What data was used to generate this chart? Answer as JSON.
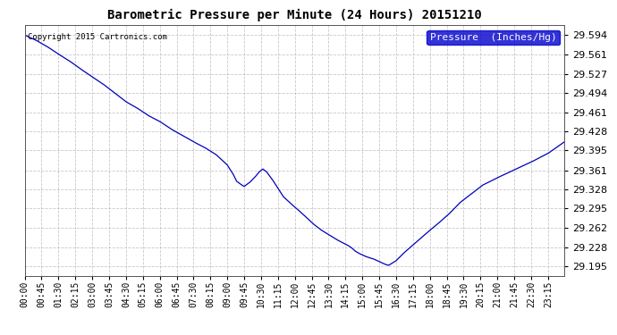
{
  "title": "Barometric Pressure per Minute (24 Hours) 20151210",
  "copyright": "Copyright 2015 Cartronics.com",
  "legend_label": "Pressure  (Inches/Hg)",
  "line_color": "#0000bb",
  "background_color": "#ffffff",
  "plot_bg_color": "#ffffff",
  "grid_color": "#bbbbbb",
  "yticks": [
    29.195,
    29.228,
    29.262,
    29.295,
    29.328,
    29.361,
    29.395,
    29.428,
    29.461,
    29.494,
    29.527,
    29.561,
    29.594
  ],
  "ylim": [
    29.178,
    29.611
  ],
  "xtick_labels": [
    "00:00",
    "00:45",
    "01:30",
    "02:15",
    "03:00",
    "03:45",
    "04:30",
    "05:15",
    "06:00",
    "06:45",
    "07:30",
    "08:15",
    "09:00",
    "09:45",
    "10:30",
    "11:15",
    "12:00",
    "12:45",
    "13:30",
    "14:15",
    "15:00",
    "15:45",
    "16:30",
    "17:15",
    "18:00",
    "18:45",
    "19:30",
    "20:15",
    "21:00",
    "21:45",
    "22:30",
    "23:15"
  ],
  "ctrl_t": [
    0,
    30,
    60,
    90,
    120,
    150,
    180,
    210,
    240,
    270,
    300,
    330,
    360,
    390,
    420,
    450,
    480,
    510,
    540,
    555,
    565,
    575,
    585,
    600,
    615,
    625,
    635,
    645,
    660,
    675,
    690,
    710,
    730,
    750,
    770,
    790,
    810,
    830,
    850,
    860,
    870,
    880,
    890,
    900,
    910,
    920,
    930,
    940,
    950,
    960,
    970,
    990,
    1010,
    1040,
    1070,
    1100,
    1130,
    1160,
    1190,
    1220,
    1260,
    1300,
    1350,
    1395,
    1439
  ],
  "ctrl_v": [
    29.594,
    29.585,
    29.574,
    29.561,
    29.549,
    29.535,
    29.522,
    29.509,
    29.494,
    29.479,
    29.468,
    29.455,
    29.445,
    29.432,
    29.421,
    29.41,
    29.4,
    29.388,
    29.37,
    29.355,
    29.342,
    29.337,
    29.333,
    29.34,
    29.35,
    29.358,
    29.363,
    29.358,
    29.345,
    29.33,
    29.315,
    29.303,
    29.292,
    29.28,
    29.268,
    29.258,
    29.25,
    29.242,
    29.235,
    29.232,
    29.228,
    29.222,
    29.218,
    29.215,
    29.212,
    29.21,
    29.208,
    29.205,
    29.202,
    29.199,
    29.197,
    29.205,
    29.218,
    29.235,
    29.252,
    29.268,
    29.285,
    29.305,
    29.32,
    29.335,
    29.348,
    29.36,
    29.375,
    29.39,
    29.41
  ]
}
